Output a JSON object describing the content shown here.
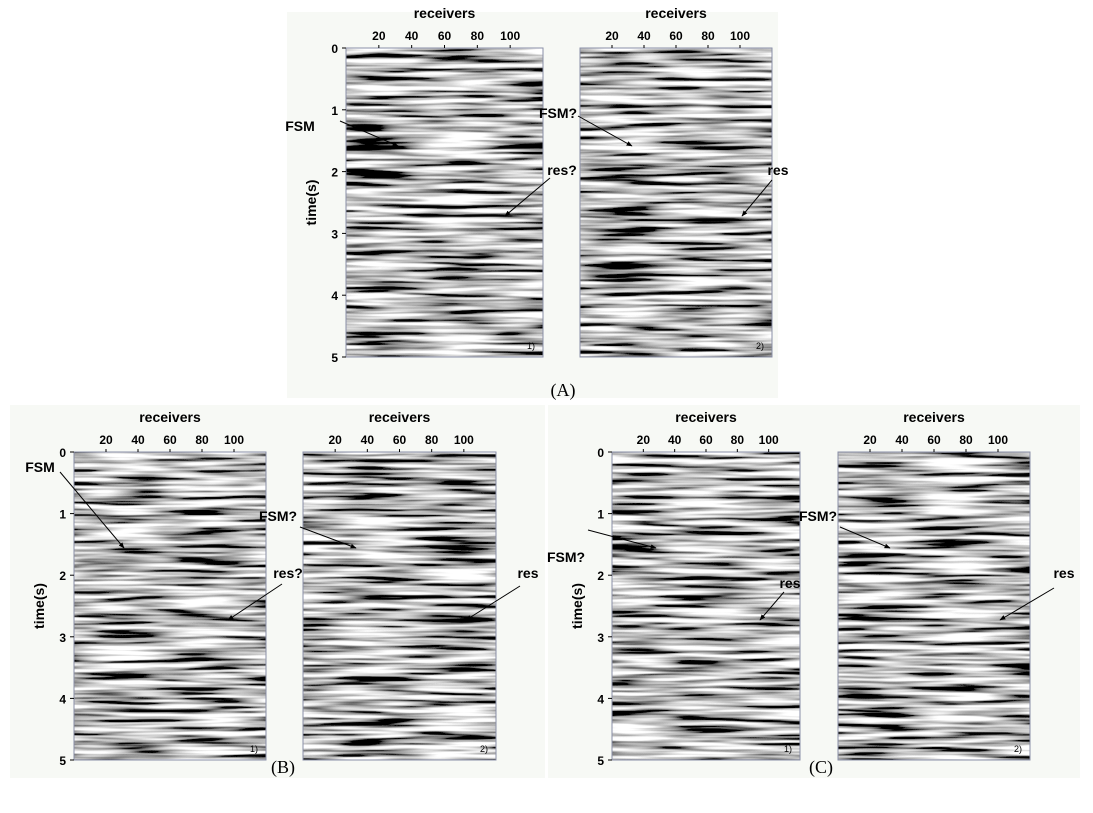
{
  "figure": {
    "panels": [
      {
        "caption": "(A)",
        "plots": [
          {
            "x_label": "receivers",
            "x_ticks": [
              20,
              40,
              60,
              80,
              100
            ],
            "y_label": "time(s)",
            "y_ticks": [
              0,
              1,
              2,
              3,
              4,
              5
            ],
            "annotations": [
              "FSM",
              "res?"
            ],
            "panel_label": "1)"
          },
          {
            "x_label": "receivers",
            "x_ticks": [
              20,
              40,
              60,
              80,
              100
            ],
            "annotations": [
              "FSM?",
              "res"
            ],
            "panel_label": "2)"
          }
        ]
      },
      {
        "caption": "(B)",
        "plots": [
          {
            "x_label": "receivers",
            "x_ticks": [
              20,
              40,
              60,
              80,
              100
            ],
            "y_label": "time(s)",
            "y_ticks": [
              0,
              1,
              2,
              3,
              4,
              5
            ],
            "annotations": [
              "FSM",
              "res?"
            ],
            "panel_label": "1)"
          },
          {
            "x_label": "receivers",
            "x_ticks": [
              20,
              40,
              60,
              80,
              100
            ],
            "annotations": [
              "FSM?",
              "res"
            ],
            "panel_label": "2)"
          }
        ]
      },
      {
        "caption": "(C)",
        "plots": [
          {
            "x_label": "receivers",
            "x_ticks": [
              20,
              40,
              60,
              80,
              100
            ],
            "y_label": "time(s)",
            "y_ticks": [
              0,
              1,
              2,
              3,
              4,
              5
            ],
            "annotations": [
              "FSM?",
              "res"
            ],
            "panel_label": "1)"
          },
          {
            "x_label": "receivers",
            "x_ticks": [
              20,
              40,
              60,
              80,
              100
            ],
            "annotations": [
              "FSM?",
              "res"
            ],
            "panel_label": "2)"
          }
        ]
      }
    ]
  }
}
